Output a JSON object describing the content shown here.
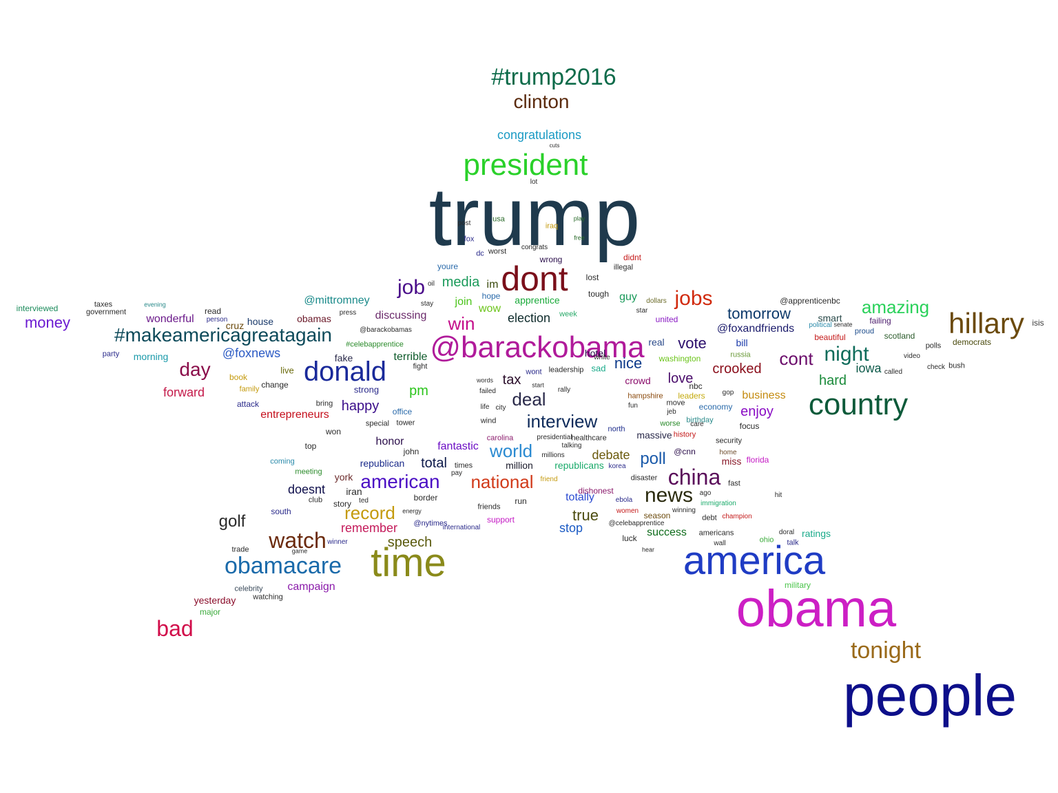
{
  "word_cloud": {
    "words": [
      {
        "text": "trump",
        "color": "#1f3a4d"
      },
      {
        "text": "people",
        "color": "#0d0f8a"
      },
      {
        "text": "obama",
        "color": "#cc1fc4"
      },
      {
        "text": "america",
        "color": "#1f3cc4"
      },
      {
        "text": "time",
        "color": "#8a8a1a"
      },
      {
        "text": "dont",
        "color": "#7a0f1a"
      },
      {
        "text": "@barackobama",
        "color": "#b01a9a"
      },
      {
        "text": "president",
        "color": "#2ad12a"
      },
      {
        "text": "country",
        "color": "#0d5a3a"
      },
      {
        "text": "hillary",
        "color": "#6b4a0d"
      },
      {
        "text": "donald",
        "color": "#1a2a9a"
      },
      {
        "text": "#trump2016",
        "color": "#0d6b4a"
      },
      {
        "text": "clinton",
        "color": "#5a2a0d"
      },
      {
        "text": "obamacare",
        "color": "#1a6aaa"
      },
      {
        "text": "watch",
        "color": "#6b2a0d"
      },
      {
        "text": "#makeamericagreatagain",
        "color": "#0d4a5a"
      },
      {
        "text": "tonight",
        "color": "#9a6a1a"
      },
      {
        "text": "china",
        "color": "#5a0d5a"
      },
      {
        "text": "news",
        "color": "#2a2a0d"
      },
      {
        "text": "national",
        "color": "#d13a1a"
      },
      {
        "text": "american",
        "color": "#4a0dc4"
      },
      {
        "text": "interview",
        "color": "#0d2a5a"
      },
      {
        "text": "bad",
        "color": "#d10d4a"
      },
      {
        "text": "jobs",
        "color": "#d12a0d"
      },
      {
        "text": "night",
        "color": "#0d6b5a"
      },
      {
        "text": "amazing",
        "color": "#2ad15a"
      },
      {
        "text": "deal",
        "color": "#2a2a4a"
      },
      {
        "text": "world",
        "color": "#2a8ad1"
      },
      {
        "text": "record",
        "color": "#c49a0d"
      },
      {
        "text": "day",
        "color": "#8a0d4a"
      },
      {
        "text": "job",
        "color": "#4a0d8a"
      },
      {
        "text": "congratulations",
        "color": "#1a9ac4"
      },
      {
        "text": "golf",
        "color": "#2a2a2a"
      },
      {
        "text": "cont",
        "color": "#6b0d6b"
      },
      {
        "text": "win",
        "color": "#c40d8a"
      },
      {
        "text": "money",
        "color": "#6b1ad1"
      },
      {
        "text": "tomorrow",
        "color": "#0d3a6b"
      },
      {
        "text": "crooked",
        "color": "#8a0d1a"
      },
      {
        "text": "poll",
        "color": "#1a5aaa"
      },
      {
        "text": "speech",
        "color": "#5a5a0d"
      },
      {
        "text": "true",
        "color": "#4a4a0d"
      },
      {
        "text": "media",
        "color": "#1a9a5a"
      },
      {
        "text": "hard",
        "color": "#1a8a3a"
      },
      {
        "text": "vote",
        "color": "#2a0d6b"
      },
      {
        "text": "campaign",
        "color": "#8a1aaa"
      },
      {
        "text": "happy",
        "color": "#3a0d8a"
      },
      {
        "text": "@foxnews",
        "color": "#2a5ac4"
      },
      {
        "text": "forward",
        "color": "#c41a4a"
      },
      {
        "text": "love",
        "color": "#4a0d6b"
      },
      {
        "text": "@mittromney",
        "color": "#1a8a8a"
      },
      {
        "text": "nice",
        "color": "#0d3a8a"
      },
      {
        "text": "remember",
        "color": "#c41a5a"
      },
      {
        "text": "enjoy",
        "color": "#8a0dc4"
      },
      {
        "text": "total",
        "color": "#0d1a4a"
      },
      {
        "text": "iowa",
        "color": "#0d5a4a"
      },
      {
        "text": "debate",
        "color": "#6b5a0d"
      },
      {
        "text": "election",
        "color": "#0d2a2a"
      },
      {
        "text": "tax",
        "color": "#2a0d2a"
      },
      {
        "text": "pm",
        "color": "#2ac41a"
      },
      {
        "text": "wonderful",
        "color": "#6b1a8a"
      },
      {
        "text": "fantastic",
        "color": "#6b0dc4"
      },
      {
        "text": "republican",
        "color": "#1a2a8a"
      },
      {
        "text": "apprentice",
        "color": "#1aaa3a"
      },
      {
        "text": "entrepreneurs",
        "color": "#c40d1a"
      },
      {
        "text": "totally",
        "color": "#2a4ad1"
      },
      {
        "text": "stop",
        "color": "#1a5ac4"
      },
      {
        "text": "honor",
        "color": "#2a0d4a"
      },
      {
        "text": "doesnt",
        "color": "#0d0d4a"
      },
      {
        "text": "success",
        "color": "#0d6b1a"
      },
      {
        "text": "republicans",
        "color": "#1aaa6a"
      },
      {
        "text": "business",
        "color": "#c48a0d"
      },
      {
        "text": "yesterday",
        "color": "#8a0d2a"
      },
      {
        "text": "discussing",
        "color": "#6b2a6b"
      },
      {
        "text": "terrible",
        "color": "#0d5a2a"
      },
      {
        "text": "fake",
        "color": "#2a2a4a"
      },
      {
        "text": "join",
        "color": "#4ac41a"
      },
      {
        "text": "guy",
        "color": "#1a9a5a"
      },
      {
        "text": "ratings",
        "color": "#1aaa8a"
      },
      {
        "text": "@foxandfriends",
        "color": "#1a1a6b"
      },
      {
        "text": "million",
        "color": "#1a1a2a"
      },
      {
        "text": "im",
        "color": "#3a4a0d"
      },
      {
        "text": "wow",
        "color": "#6bc41a"
      },
      {
        "text": "york",
        "color": "#6b2a2a"
      },
      {
        "text": "house",
        "color": "#1a3a6b"
      },
      {
        "text": "cruz",
        "color": "#6b4a0d"
      },
      {
        "text": "obamas",
        "color": "#6b1a2a"
      },
      {
        "text": "morning",
        "color": "#1a9aaa"
      },
      {
        "text": "iran",
        "color": "#2a2a2a"
      },
      {
        "text": "hotel",
        "color": "#2a0d4a"
      },
      {
        "text": "crowd",
        "color": "#8a0d6b"
      },
      {
        "text": "interviewed",
        "color": "#1a8a5a"
      },
      {
        "text": "@apprenticenbc",
        "color": "#2a2a2a"
      },
      {
        "text": "isis",
        "color": "#3a3a3a"
      },
      {
        "text": "democrats",
        "color": "#4a4a0d"
      },
      {
        "text": "military",
        "color": "#4ac44a"
      },
      {
        "text": "watching",
        "color": "#2a2a2a"
      },
      {
        "text": "major",
        "color": "#3aaa3a"
      },
      {
        "text": "celebrity",
        "color": "#3a4a5a"
      },
      {
        "text": "trade",
        "color": "#2a2a2a"
      },
      {
        "text": "miss",
        "color": "#8a1a2a"
      },
      {
        "text": "florida",
        "color": "#c41ac4"
      },
      {
        "text": "massive",
        "color": "#2a2a4a"
      },
      {
        "text": "@cnn",
        "color": "#2a0d4a"
      },
      {
        "text": "smart",
        "color": "#2a4a4a"
      },
      {
        "text": "scotland",
        "color": "#2a5a2a"
      },
      {
        "text": "failing",
        "color": "#4a1a6b"
      },
      {
        "text": "beautiful",
        "color": "#c41a1a"
      },
      {
        "text": "economy",
        "color": "#2a6aaa"
      },
      {
        "text": "russia",
        "color": "#6b9a3a"
      },
      {
        "text": "washington",
        "color": "#6bc41a"
      },
      {
        "text": "united",
        "color": "#8a1ac4"
      },
      {
        "text": "real",
        "color": "#2a4a8a"
      },
      {
        "text": "nbc",
        "color": "#2a2a2a"
      },
      {
        "text": "bill",
        "color": "#1a3aaa"
      },
      {
        "text": "proud",
        "color": "#1a4a8a"
      },
      {
        "text": "polls",
        "color": "#2a2a2a"
      },
      {
        "text": "bush",
        "color": "#2a2a2a"
      },
      {
        "text": "video",
        "color": "#2a2a2a"
      },
      {
        "text": "check",
        "color": "#2a2a2a"
      },
      {
        "text": "called",
        "color": "#2a2a2a"
      },
      {
        "text": "focus",
        "color": "#2a2a2a"
      },
      {
        "text": "security",
        "color": "#2a2a2a"
      },
      {
        "text": "home",
        "color": "#6b4a2a"
      },
      {
        "text": "gop",
        "color": "#2a2a2a"
      },
      {
        "text": "fast",
        "color": "#2a2a2a"
      },
      {
        "text": "hit",
        "color": "#2a2a2a"
      },
      {
        "text": "talk",
        "color": "#2a2a8a"
      },
      {
        "text": "doral",
        "color": "#2a2a2a"
      },
      {
        "text": "ohio",
        "color": "#3aaa3a"
      },
      {
        "text": "champion",
        "color": "#c41a1a"
      },
      {
        "text": "debt",
        "color": "#2a2a2a"
      },
      {
        "text": "winning",
        "color": "#2a2a2a"
      },
      {
        "text": "americans",
        "color": "#2a2a2a"
      },
      {
        "text": "wall",
        "color": "#2a2a2a"
      },
      {
        "text": "immigration",
        "color": "#1aaa6a"
      },
      {
        "text": "history",
        "color": "#c41a1a"
      },
      {
        "text": "ago",
        "color": "#2a2a2a"
      },
      {
        "text": "season",
        "color": "#6b4a0d"
      },
      {
        "text": "women",
        "color": "#c41a1a"
      },
      {
        "text": "disaster",
        "color": "#2a2a2a"
      },
      {
        "text": "luck",
        "color": "#2a2a2a"
      },
      {
        "text": "dishonest",
        "color": "#8a1a6b"
      },
      {
        "text": "@celebapprentice",
        "color": "#2a2a2a"
      },
      {
        "text": "north",
        "color": "#1a2a8a"
      },
      {
        "text": "healthcare",
        "color": "#2a2a2a"
      },
      {
        "text": "sad",
        "color": "#1aaa8a"
      },
      {
        "text": "white",
        "color": "#2a2a2a"
      },
      {
        "text": "hampshire",
        "color": "#8a4a0d"
      },
      {
        "text": "leaders",
        "color": "#c4aa0d"
      },
      {
        "text": "worse",
        "color": "#2a8a2a"
      },
      {
        "text": "birthday",
        "color": "#2a8a8a"
      },
      {
        "text": "care",
        "color": "#2a2a2a"
      },
      {
        "text": "move",
        "color": "#2a2a2a"
      },
      {
        "text": "jeb",
        "color": "#2a2a2a"
      },
      {
        "text": "wont",
        "color": "#2a2a8a"
      },
      {
        "text": "leadership",
        "color": "#2a2a2a"
      },
      {
        "text": "week",
        "color": "#2aaa6a"
      },
      {
        "text": "tough",
        "color": "#2a2a2a"
      },
      {
        "text": "lost",
        "color": "#2a2a2a"
      },
      {
        "text": "star",
        "color": "#2a2a2a"
      },
      {
        "text": "dollars",
        "color": "#6b6b2a"
      },
      {
        "text": "illegal",
        "color": "#2a2a2a"
      },
      {
        "text": "didnt",
        "color": "#c41a1a"
      },
      {
        "text": "wrong",
        "color": "#2a0d4a"
      },
      {
        "text": "congrats",
        "color": "#2a2a2a"
      },
      {
        "text": "worst",
        "color": "#2a2a2a"
      },
      {
        "text": "dc",
        "color": "#2a2a8a"
      },
      {
        "text": "fox",
        "color": "#2a2a8a"
      },
      {
        "text": "youre",
        "color": "#2a6aaa"
      },
      {
        "text": "hope",
        "color": "#2a6aaa"
      },
      {
        "text": "lot",
        "color": "#2a2a2a"
      },
      {
        "text": "cuts",
        "color": "#2a2a2a"
      },
      {
        "text": "iraq",
        "color": "#c49a0d"
      },
      {
        "text": "post",
        "color": "#2a2a2a"
      },
      {
        "text": "usa",
        "color": "#2a6a2a"
      },
      {
        "text": "play",
        "color": "#2a6a2a"
      },
      {
        "text": "free",
        "color": "#2a6a2a"
      },
      {
        "text": "taxes",
        "color": "#2a2a2a"
      },
      {
        "text": "government",
        "color": "#2a2a2a"
      },
      {
        "text": "read",
        "color": "#2a2a2a"
      },
      {
        "text": "person",
        "color": "#2a2a8a"
      },
      {
        "text": "party",
        "color": "#2a2a8a"
      },
      {
        "text": "book",
        "color": "#c49a0d"
      },
      {
        "text": "family",
        "color": "#c49a0d"
      },
      {
        "text": "change",
        "color": "#2a2a2a"
      },
      {
        "text": "live",
        "color": "#6b6b0d"
      },
      {
        "text": "attack",
        "color": "#2a2a8a"
      },
      {
        "text": "bring",
        "color": "#2a2a2a"
      },
      {
        "text": "strong",
        "color": "#2a2a8a"
      },
      {
        "text": "special",
        "color": "#2a2a2a"
      },
      {
        "text": "tower",
        "color": "#2a2a2a"
      },
      {
        "text": "office",
        "color": "#2a6aaa"
      },
      {
        "text": "won",
        "color": "#2a2a2a"
      },
      {
        "text": "top",
        "color": "#2a2a2a"
      },
      {
        "text": "john",
        "color": "#2a2a2a"
      },
      {
        "text": "ted",
        "color": "#2a2a2a"
      },
      {
        "text": "story",
        "color": "#2a2a2a"
      },
      {
        "text": "south",
        "color": "#2a2a8a"
      },
      {
        "text": "meeting",
        "color": "#2a8a2a"
      },
      {
        "text": "coming",
        "color": "#2a8aaa"
      },
      {
        "text": "club",
        "color": "#2a2a2a"
      },
      {
        "text": "border",
        "color": "#2a2a2a"
      },
      {
        "text": "friends",
        "color": "#2a2a2a"
      },
      {
        "text": "run",
        "color": "#2a2a2a"
      },
      {
        "text": "support",
        "color": "#c41ac4"
      },
      {
        "text": "carolina",
        "color": "#8a1a6b"
      },
      {
        "text": "presidential",
        "color": "#2a2a2a"
      },
      {
        "text": "talking",
        "color": "#2a2a2a"
      },
      {
        "text": "millions",
        "color": "#2a2a2a"
      },
      {
        "text": "times",
        "color": "#2a2a2a"
      },
      {
        "text": "@barackobamas",
        "color": "#2a2a2a"
      },
      {
        "text": "#celebapprentice",
        "color": "#2a8a2a"
      },
      {
        "text": "press",
        "color": "#2a2a2a"
      },
      {
        "text": "@nytimes",
        "color": "#2a2a8a"
      },
      {
        "text": "stay",
        "color": "#2a2a2a"
      },
      {
        "text": "oil",
        "color": "#2a2a2a"
      },
      {
        "text": "fight",
        "color": "#2a2a2a"
      },
      {
        "text": "wind",
        "color": "#2a2a2a"
      },
      {
        "text": "city",
        "color": "#2a2a2a"
      },
      {
        "text": "life",
        "color": "#2a2a2a"
      },
      {
        "text": "failed",
        "color": "#2a2a2a"
      },
      {
        "text": "words",
        "color": "#2a2a2a"
      },
      {
        "text": "start",
        "color": "#2a2a2a"
      },
      {
        "text": "evening",
        "color": "#2a8a8a"
      },
      {
        "text": "international",
        "color": "#2a2a8a"
      },
      {
        "text": "winner",
        "color": "#2a2a8a"
      },
      {
        "text": "ebola",
        "color": "#2a2a8a"
      },
      {
        "text": "fun",
        "color": "#2a2a2a"
      },
      {
        "text": "korea",
        "color": "#2a2a8a"
      },
      {
        "text": "friend",
        "color": "#c49a0d"
      },
      {
        "text": "pay",
        "color": "#2a2a2a"
      },
      {
        "text": "rally",
        "color": "#2a2a2a"
      },
      {
        "text": "energy",
        "color": "#2a2a2a"
      },
      {
        "text": "game",
        "color": "#2a2a2a"
      },
      {
        "text": "hear",
        "color": "#2a2a2a"
      },
      {
        "text": "political",
        "color": "#2a8aaa"
      },
      {
        "text": "senate",
        "color": "#2a2a2a"
      }
    ]
  }
}
